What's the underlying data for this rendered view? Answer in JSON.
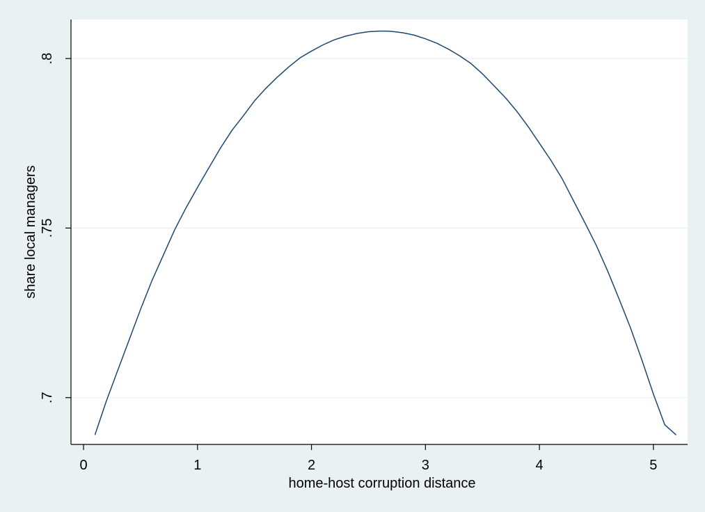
{
  "chart_data": {
    "type": "line",
    "title": "",
    "xlabel": "home-host corruption distance",
    "ylabel": "share local managers",
    "xlim": [
      -0.11,
      5.3
    ],
    "ylim": [
      0.6862,
      0.8115
    ],
    "xticks": [
      0,
      1,
      2,
      3,
      4,
      5
    ],
    "xtick_labels": [
      "0",
      "1",
      "2",
      "3",
      "4",
      "5"
    ],
    "yticks": [
      0.7,
      0.75,
      0.8
    ],
    "ytick_labels": [
      ".7",
      ".75",
      ".8"
    ],
    "grid": "horizontal",
    "legend": "none",
    "series": [
      {
        "x": [
          0.1,
          0.2,
          0.3,
          0.4,
          0.5,
          0.6,
          0.7,
          0.8,
          0.9,
          1.0,
          1.1,
          1.2,
          1.3,
          1.4,
          1.5,
          1.6,
          1.7,
          1.8,
          1.9,
          2.0,
          2.1,
          2.2,
          2.3,
          2.4,
          2.5,
          2.6,
          2.65,
          2.7,
          2.8,
          2.9,
          3.0,
          3.1,
          3.2,
          3.3,
          3.4,
          3.5,
          3.6,
          3.7,
          3.8,
          3.9,
          4.0,
          4.1,
          4.2,
          4.3,
          4.4,
          4.5,
          4.6,
          4.7,
          4.8,
          4.9,
          5.0,
          5.1,
          5.2
        ],
        "y": [
          0.689,
          0.699,
          0.708,
          0.717,
          0.726,
          0.7345,
          0.742,
          0.7495,
          0.756,
          0.762,
          0.7678,
          0.7735,
          0.7787,
          0.783,
          0.7875,
          0.7912,
          0.7945,
          0.7975,
          0.8002,
          0.8022,
          0.804,
          0.8055,
          0.8066,
          0.8074,
          0.8079,
          0.8081,
          0.8081,
          0.808,
          0.8076,
          0.8069,
          0.8058,
          0.8045,
          0.8028,
          0.8008,
          0.7985,
          0.7955,
          0.792,
          0.7885,
          0.7845,
          0.78,
          0.775,
          0.77,
          0.7645,
          0.758,
          0.7515,
          0.7448,
          0.7372,
          0.729,
          0.7205,
          0.711,
          0.701,
          0.692,
          0.689
        ],
        "color": "#1a476f"
      }
    ]
  }
}
